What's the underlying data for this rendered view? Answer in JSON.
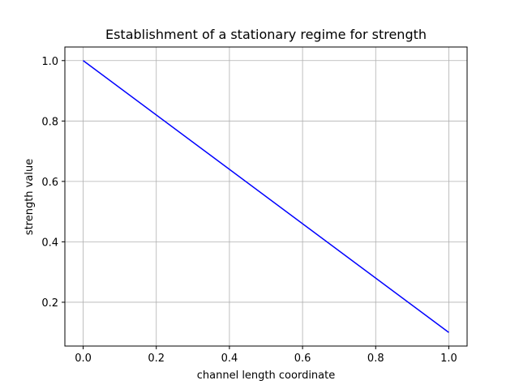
{
  "chart_data": {
    "type": "line",
    "title": "Establishment of a stationary regime for strength",
    "xlabel": "channel length coordinate",
    "ylabel": "strength value",
    "xlim": [
      -0.05,
      1.05
    ],
    "ylim": [
      0.055,
      1.045
    ],
    "xticks": [
      0.0,
      0.2,
      0.4,
      0.6,
      0.8,
      1.0
    ],
    "xtick_labels": [
      "0.0",
      "0.2",
      "0.4",
      "0.6",
      "0.8",
      "1.0"
    ],
    "yticks": [
      0.2,
      0.4,
      0.6,
      0.8,
      1.0
    ],
    "ytick_labels": [
      "0.2",
      "0.4",
      "0.6",
      "0.8",
      "1.0"
    ],
    "grid": true,
    "series": [
      {
        "color": "#0000ff",
        "x": [
          0.0,
          1.0
        ],
        "y": [
          1.0,
          0.1
        ]
      }
    ]
  }
}
